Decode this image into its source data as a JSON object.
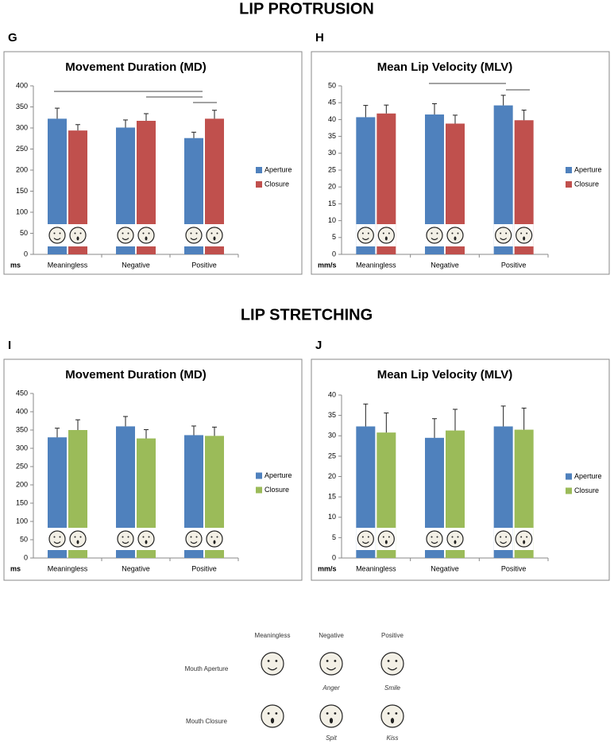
{
  "sections": [
    "LIP PROTRUSION",
    "LIP STRETCHING"
  ],
  "chart_data": [
    {
      "panel": "G",
      "type": "bar",
      "title": "Movement Duration (MD)",
      "y_unit": "ms",
      "categories": [
        "Meaningless",
        "Negative",
        "Positive"
      ],
      "series": [
        {
          "name": "Aperture",
          "color": "#4f81bd",
          "values": [
            322,
            301,
            276
          ],
          "errors": [
            25,
            18,
            14
          ]
        },
        {
          "name": "Closure",
          "color": "#c0504d",
          "values": [
            294,
            317,
            322
          ],
          "errors": [
            14,
            17,
            20
          ]
        }
      ],
      "ylim": [
        0,
        400
      ],
      "yticks": [
        0,
        50,
        100,
        150,
        200,
        250,
        300,
        350,
        400
      ],
      "legend": "right"
    },
    {
      "panel": "H",
      "type": "bar",
      "title": "Mean Lip Velocity (MLV)",
      "y_unit": "mm/s",
      "categories": [
        "Meaningless",
        "Negative",
        "Positive"
      ],
      "series": [
        {
          "name": "Aperture",
          "color": "#4f81bd",
          "values": [
            40.7,
            41.5,
            44.2
          ],
          "errors": [
            3.5,
            3.2,
            3
          ]
        },
        {
          "name": "Closure",
          "color": "#c0504d",
          "values": [
            41.8,
            38.8,
            39.8
          ],
          "errors": [
            2.5,
            2.5,
            3
          ]
        }
      ],
      "ylim": [
        0,
        50
      ],
      "yticks": [
        0,
        5,
        10,
        15,
        20,
        25,
        30,
        35,
        40,
        45,
        50
      ],
      "legend": "right"
    },
    {
      "panel": "I",
      "type": "bar",
      "title": "Movement Duration (MD)",
      "y_unit": "ms",
      "categories": [
        "Meaningless",
        "Negative",
        "Positive"
      ],
      "series": [
        {
          "name": "Aperture",
          "color": "#4f81bd",
          "values": [
            330,
            360,
            336
          ],
          "errors": [
            25,
            27,
            25
          ]
        },
        {
          "name": "Closure",
          "color": "#9bbb59",
          "values": [
            350,
            327,
            334
          ],
          "errors": [
            28,
            24,
            24
          ]
        }
      ],
      "ylim": [
        0,
        450
      ],
      "yticks": [
        0,
        50,
        100,
        150,
        200,
        250,
        300,
        350,
        400,
        450
      ],
      "legend": "right"
    },
    {
      "panel": "J",
      "type": "bar",
      "title": "Mean Lip Velocity (MLV)",
      "y_unit": "mm/s",
      "categories": [
        "Meaningless",
        "Negative",
        "Positive"
      ],
      "series": [
        {
          "name": "Aperture",
          "color": "#4f81bd",
          "values": [
            32.3,
            29.5,
            32.3
          ],
          "errors": [
            5.5,
            4.7,
            5
          ]
        },
        {
          "name": "Closure",
          "color": "#9bbb59",
          "values": [
            30.8,
            31.3,
            31.5
          ],
          "errors": [
            4.8,
            5.2,
            5.3
          ]
        }
      ],
      "ylim": [
        0,
        40
      ],
      "yticks": [
        0,
        5,
        10,
        15,
        20,
        25,
        30,
        35,
        40
      ],
      "legend": "right"
    }
  ],
  "face_key": {
    "columns": [
      "Meaningless",
      "Negative",
      "Positive"
    ],
    "rows": [
      "Mouth Aperture",
      "Mouth Closure"
    ],
    "aperture_captions": [
      "Anger",
      "Smile"
    ],
    "closure_captions": [
      "Spit",
      "Kiss"
    ]
  }
}
